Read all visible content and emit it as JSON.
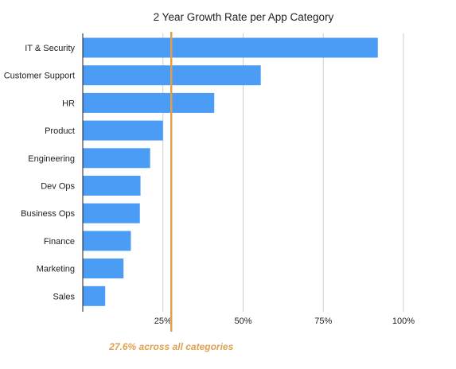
{
  "colors": {
    "bar": "#4a9cf5",
    "reference_line": "#e0a050",
    "gridline": "#cfcfcf",
    "axis": "#222222"
  },
  "chart_data": {
    "type": "bar",
    "orientation": "horizontal",
    "title": "2 Year Growth Rate per App Category",
    "categories": [
      "IT & Security",
      "Customer Support",
      "HR",
      "Product",
      "Engineering",
      "Dev Ops",
      "Business Ops",
      "Finance",
      "Marketing",
      "Sales"
    ],
    "values": [
      92,
      55.5,
      41,
      25,
      21,
      18,
      17.8,
      15,
      12.7,
      7
    ],
    "x_ticks": [
      25,
      50,
      75,
      100
    ],
    "x_tick_labels": [
      "25%",
      "50%",
      "75%",
      "100%"
    ],
    "xlim": [
      0,
      100
    ],
    "grid": true,
    "reference_line": {
      "value": 27.6,
      "label": "27.6% across all categories"
    }
  }
}
